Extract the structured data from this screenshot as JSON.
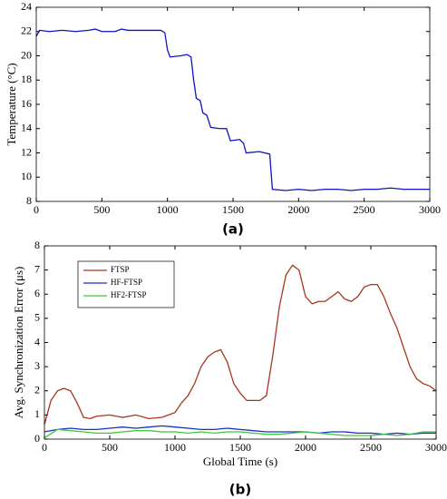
{
  "chart_data": [
    {
      "type": "line",
      "caption": "(a)",
      "ylabel": "Temperature (°C)",
      "xlim": [
        0,
        3000
      ],
      "xticks": [
        0,
        500,
        1000,
        1500,
        2000,
        2500,
        3000
      ],
      "ylim": [
        8,
        24
      ],
      "yticks": [
        8,
        10,
        12,
        14,
        16,
        18,
        20,
        22,
        24
      ],
      "series": [
        {
          "color": "#1010c8",
          "x": [
            0,
            25,
            100,
            200,
            300,
            400,
            450,
            500,
            600,
            650,
            700,
            800,
            900,
            950,
            980,
            1000,
            1020,
            1100,
            1150,
            1180,
            1200,
            1220,
            1250,
            1270,
            1300,
            1330,
            1400,
            1450,
            1480,
            1550,
            1580,
            1600,
            1700,
            1780,
            1800,
            1900,
            2000,
            2100,
            2200,
            2300,
            2400,
            2500,
            2600,
            2700,
            2800,
            2900,
            3000
          ],
          "values": [
            21.6,
            22.1,
            22.0,
            22.1,
            22.0,
            22.1,
            22.2,
            22.0,
            22.0,
            22.2,
            22.1,
            22.1,
            22.1,
            22.1,
            21.9,
            20.5,
            19.9,
            20.0,
            20.1,
            19.9,
            18,
            16.5,
            16.3,
            15.3,
            15.1,
            14.1,
            14.0,
            14.0,
            13.0,
            13.1,
            12.8,
            12.0,
            12.1,
            11.9,
            9.0,
            8.9,
            9.0,
            8.9,
            9.0,
            9.0,
            8.9,
            9.0,
            9.0,
            9.1,
            9.0,
            9.0,
            9.0
          ]
        }
      ]
    },
    {
      "type": "line",
      "caption": "(b)",
      "xlabel": "Global Time (s)",
      "ylabel": "Avg. Synchronization Error (μs)",
      "xlim": [
        0,
        3000
      ],
      "xticks": [
        0,
        500,
        1000,
        1500,
        2000,
        2500,
        3000
      ],
      "ylim": [
        0,
        8
      ],
      "yticks": [
        0,
        1,
        2,
        3,
        4,
        5,
        6,
        7,
        8
      ],
      "legend": "upper left",
      "series": [
        {
          "name": "FTSP",
          "color": "#a8361e",
          "x": [
            0,
            50,
            100,
            150,
            200,
            250,
            300,
            350,
            400,
            500,
            600,
            700,
            800,
            900,
            1000,
            1050,
            1100,
            1150,
            1200,
            1250,
            1300,
            1350,
            1400,
            1450,
            1500,
            1550,
            1600,
            1650,
            1700,
            1750,
            1800,
            1850,
            1900,
            1950,
            2000,
            2050,
            2100,
            2150,
            2200,
            2250,
            2300,
            2350,
            2400,
            2450,
            2500,
            2550,
            2600,
            2650,
            2700,
            2750,
            2800,
            2850,
            2900,
            2950,
            3000
          ],
          "values": [
            0.6,
            1.6,
            2.0,
            2.1,
            2.0,
            1.5,
            0.9,
            0.85,
            0.95,
            1.0,
            0.9,
            1.0,
            0.85,
            0.9,
            1.1,
            1.5,
            1.8,
            2.3,
            3.0,
            3.4,
            3.6,
            3.7,
            3.2,
            2.3,
            1.9,
            1.6,
            1.6,
            1.6,
            1.8,
            3.5,
            5.5,
            6.8,
            7.2,
            7.0,
            5.9,
            5.6,
            5.7,
            5.7,
            5.9,
            6.1,
            5.8,
            5.7,
            5.9,
            6.3,
            6.4,
            6.4,
            5.9,
            5.2,
            4.6,
            3.8,
            3.0,
            2.5,
            2.3,
            2.2,
            2.0
          ]
        },
        {
          "name": "HF-FTSP",
          "color": "#1a2fc0",
          "x": [
            0,
            100,
            200,
            300,
            400,
            500,
            600,
            700,
            800,
            900,
            1000,
            1100,
            1200,
            1300,
            1400,
            1500,
            1600,
            1700,
            1800,
            1900,
            2000,
            2100,
            2200,
            2300,
            2400,
            2500,
            2600,
            2700,
            2800,
            2900,
            3000
          ],
          "values": [
            0.3,
            0.4,
            0.45,
            0.4,
            0.4,
            0.45,
            0.5,
            0.45,
            0.5,
            0.55,
            0.5,
            0.45,
            0.4,
            0.4,
            0.45,
            0.4,
            0.35,
            0.3,
            0.3,
            0.3,
            0.3,
            0.25,
            0.3,
            0.3,
            0.25,
            0.25,
            0.2,
            0.25,
            0.2,
            0.25,
            0.25
          ]
        },
        {
          "name": "HF2-FTSP",
          "color": "#3cc83c",
          "x": [
            0,
            100,
            200,
            300,
            400,
            500,
            600,
            700,
            800,
            900,
            1000,
            1100,
            1200,
            1300,
            1400,
            1500,
            1600,
            1700,
            1800,
            1900,
            2000,
            2100,
            2200,
            2300,
            2400,
            2500,
            2600,
            2700,
            2800,
            2900,
            3000
          ],
          "values": [
            0.05,
            0.4,
            0.35,
            0.3,
            0.25,
            0.25,
            0.3,
            0.35,
            0.35,
            0.3,
            0.3,
            0.25,
            0.3,
            0.25,
            0.3,
            0.3,
            0.25,
            0.2,
            0.2,
            0.25,
            0.3,
            0.25,
            0.2,
            0.15,
            0.15,
            0.15,
            0.2,
            0.15,
            0.2,
            0.3,
            0.3
          ]
        }
      ]
    }
  ]
}
